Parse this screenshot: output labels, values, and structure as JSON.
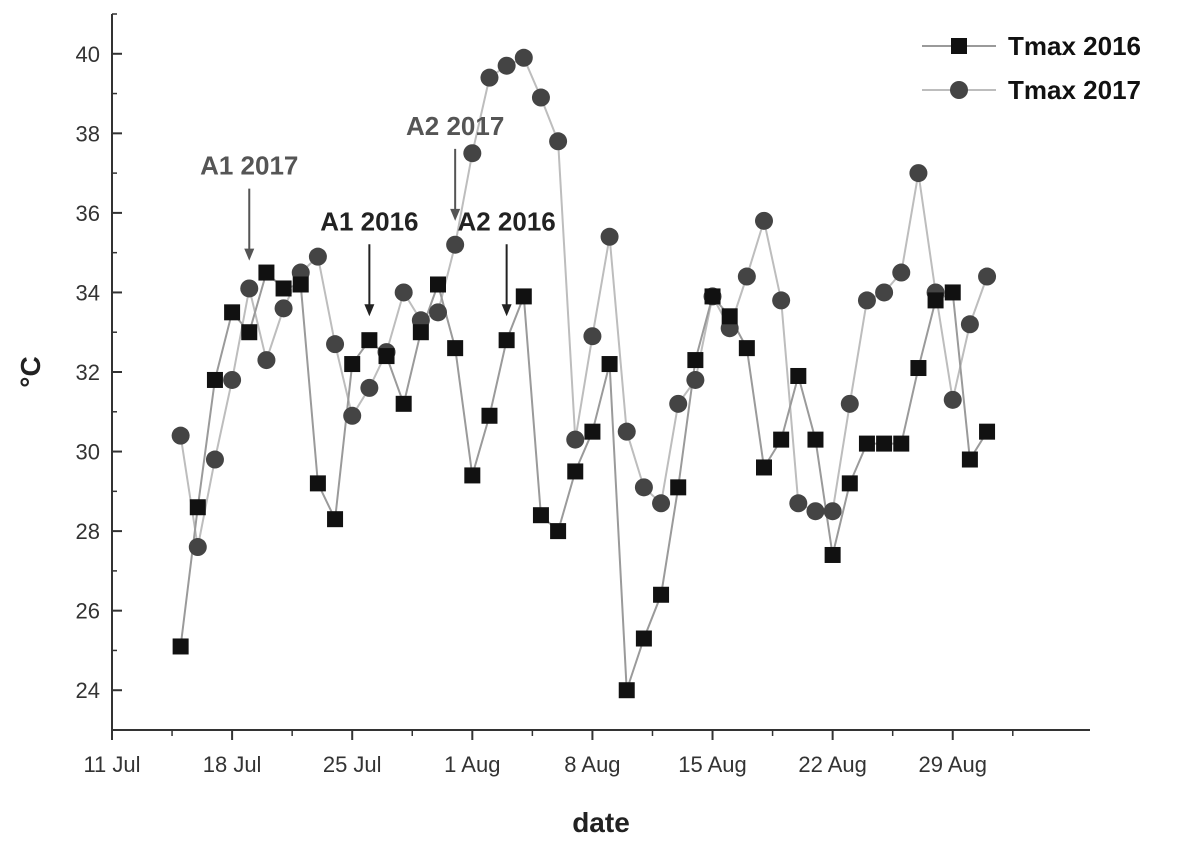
{
  "chart_data": {
    "type": "line",
    "xlabel": "date",
    "ylabel": "°C",
    "xlim": [
      "2016-07-11",
      "2016-09-06"
    ],
    "ylim": [
      23,
      41
    ],
    "x_ticks": [
      {
        "date": "2016-07-11",
        "label": "11 Jul"
      },
      {
        "date": "2016-07-18",
        "label": "18 Jul"
      },
      {
        "date": "2016-07-25",
        "label": "25 Jul"
      },
      {
        "date": "2016-08-01",
        "label": "1 Aug"
      },
      {
        "date": "2016-08-08",
        "label": "8 Aug"
      },
      {
        "date": "2016-08-15",
        "label": "15 Aug"
      },
      {
        "date": "2016-08-22",
        "label": "22 Aug"
      },
      {
        "date": "2016-08-29",
        "label": "29 Aug"
      }
    ],
    "y_ticks": [
      24,
      26,
      28,
      30,
      32,
      34,
      36,
      38,
      40
    ],
    "grid": false,
    "legend_position": "top-right",
    "series": [
      {
        "name": "Tmax 2016",
        "marker": "square",
        "color": "#111111",
        "line_color": "#9a9a9a",
        "x": [
          "2016-07-15",
          "2016-07-16",
          "2016-07-17",
          "2016-07-18",
          "2016-07-19",
          "2016-07-20",
          "2016-07-21",
          "2016-07-22",
          "2016-07-23",
          "2016-07-24",
          "2016-07-25",
          "2016-07-26",
          "2016-07-27",
          "2016-07-28",
          "2016-07-29",
          "2016-07-30",
          "2016-07-31",
          "2016-08-01",
          "2016-08-02",
          "2016-08-03",
          "2016-08-04",
          "2016-08-05",
          "2016-08-06",
          "2016-08-07",
          "2016-08-08",
          "2016-08-09",
          "2016-08-10",
          "2016-08-11",
          "2016-08-12",
          "2016-08-13",
          "2016-08-14",
          "2016-08-15",
          "2016-08-16",
          "2016-08-17",
          "2016-08-18",
          "2016-08-19",
          "2016-08-20",
          "2016-08-21",
          "2016-08-22",
          "2016-08-23",
          "2016-08-24",
          "2016-08-25",
          "2016-08-26",
          "2016-08-27",
          "2016-08-28",
          "2016-08-29",
          "2016-08-30",
          "2016-08-31"
        ],
        "y": [
          25.1,
          28.6,
          31.8,
          33.5,
          33.0,
          34.5,
          34.1,
          34.2,
          29.2,
          28.3,
          32.2,
          32.8,
          32.4,
          31.2,
          33.0,
          34.2,
          32.6,
          29.4,
          30.9,
          32.8,
          33.9,
          28.4,
          28.0,
          29.5,
          30.5,
          32.2,
          24.0,
          25.3,
          26.4,
          29.1,
          32.3,
          33.9,
          33.4,
          32.6,
          29.6,
          30.3,
          31.9,
          30.3,
          27.4,
          29.2,
          30.2,
          30.2,
          30.2,
          32.1,
          33.8,
          34.0,
          29.8,
          30.5
        ]
      },
      {
        "name": "Tmax 2017",
        "marker": "circle",
        "color": "#444444",
        "line_color": "#bdbdbd",
        "x": [
          "2016-07-15",
          "2016-07-16",
          "2016-07-17",
          "2016-07-18",
          "2016-07-19",
          "2016-07-20",
          "2016-07-21",
          "2016-07-22",
          "2016-07-23",
          "2016-07-24",
          "2016-07-25",
          "2016-07-26",
          "2016-07-27",
          "2016-07-28",
          "2016-07-29",
          "2016-07-30",
          "2016-07-31",
          "2016-08-01",
          "2016-08-02",
          "2016-08-03",
          "2016-08-04",
          "2016-08-05",
          "2016-08-06",
          "2016-08-07",
          "2016-08-08",
          "2016-08-09",
          "2016-08-10",
          "2016-08-11",
          "2016-08-12",
          "2016-08-13",
          "2016-08-14",
          "2016-08-15",
          "2016-08-16",
          "2016-08-17",
          "2016-08-18",
          "2016-08-19",
          "2016-08-20",
          "2016-08-21",
          "2016-08-22",
          "2016-08-23",
          "2016-08-24",
          "2016-08-25",
          "2016-08-26",
          "2016-08-27",
          "2016-08-28",
          "2016-08-29",
          "2016-08-30",
          "2016-08-31"
        ],
        "y": [
          30.4,
          27.6,
          29.8,
          31.8,
          34.1,
          32.3,
          33.6,
          34.5,
          34.9,
          32.7,
          30.9,
          31.6,
          32.5,
          34.0,
          33.3,
          33.5,
          35.2,
          37.5,
          39.4,
          39.7,
          39.9,
          38.9,
          37.8,
          30.3,
          32.9,
          35.4,
          30.5,
          29.1,
          28.7,
          31.2,
          31.8,
          33.9,
          33.1,
          34.4,
          35.8,
          33.8,
          28.7,
          28.5,
          28.5,
          31.2,
          33.8,
          34.0,
          34.5,
          37.0,
          34.0,
          31.3,
          33.2,
          34.4
        ]
      }
    ],
    "annotations": [
      {
        "text": "A1 2017",
        "series": "Tmax 2017",
        "x": "2016-07-19",
        "y": 34.8
      },
      {
        "text": "A1 2016",
        "series": "Tmax 2016",
        "x": "2016-07-26",
        "y": 33.4
      },
      {
        "text": "A2 2017",
        "series": "Tmax 2017",
        "x": "2016-07-31",
        "y": 35.8
      },
      {
        "text": "A2 2016",
        "series": "Tmax 2016",
        "x": "2016-08-03",
        "y": 33.4
      }
    ]
  }
}
